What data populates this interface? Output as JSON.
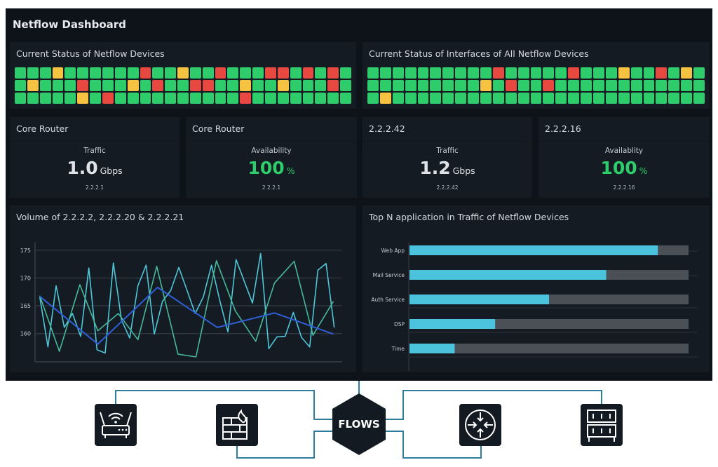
{
  "dashboard": {
    "title": "Netflow Dashboard"
  },
  "colors": {
    "up": "#2ecc6b",
    "warning": "#f5c242",
    "down": "#e7483f",
    "bar_fill": "#4cc3dc",
    "bar_track": "#4b4f56",
    "connector": "#2e7d99"
  },
  "status_panels": [
    {
      "title": "Current Status of Netflow Devices",
      "rows": [
        "GGGYGGGGGGRGGYGGRGGGRRGRGRG",
        "GYGGGRGGGYGRGGRRGGYGGYGGGRG",
        "GGGGGYGRGGGGGGGGGGRGGGGGGGG"
      ]
    },
    {
      "title": "Current Status of Interfaces of All Netflow Devices",
      "rows": [
        "GGGGGGGGGGRGGGGGRGGGYGGRGYG",
        "GGGGGGGGGYGRGGRGGGGGGGGGGGG",
        "GYGGGGGGGGGGGGGGGGGGGGGGGGG"
      ]
    }
  ],
  "kpis": [
    {
      "title": "Core Router",
      "label": "Traffic",
      "value": "1.0",
      "unit": "Gbps",
      "sub": "2.2.2.1",
      "style": "white"
    },
    {
      "title": "Core Router",
      "label": "Availability",
      "value": "100",
      "unit": "%",
      "sub": "2.2.2.1",
      "style": "green"
    },
    {
      "title": "2.2.2.42",
      "label": "Traffic",
      "value": "1.2",
      "unit": "Gbps",
      "sub": "2.2.2.42",
      "style": "white"
    },
    {
      "title": "2.2.2.16",
      "label": "Availablity",
      "value": "100",
      "unit": "%",
      "sub": "2.2.2.16",
      "style": "green"
    }
  ],
  "chart_data": [
    {
      "type": "line",
      "title": "Volume of 2.2.2.2, 2.2.2.20 & 2.2.2.21",
      "ylim": [
        155,
        176
      ],
      "yticks": [
        "160",
        "165",
        "170",
        "175"
      ],
      "grid": true,
      "series": [
        {
          "color": "#4fc6d9",
          "x": [
            0,
            1,
            2,
            3,
            4,
            5,
            6,
            7,
            8,
            9,
            10,
            11,
            12,
            13,
            14,
            15,
            16,
            17,
            18,
            19,
            20,
            21,
            22,
            23,
            24,
            25,
            26,
            27,
            28,
            29,
            30,
            31,
            32,
            33,
            34,
            35,
            36
          ],
          "values": [
            166.6,
            157.6,
            168.6,
            161.1,
            163.6,
            159.5,
            171.8,
            157.1,
            156.5,
            172.7,
            162.4,
            159.2,
            168.6,
            172.3,
            159.9,
            165.8,
            167.7,
            171.9,
            167.8,
            163.6,
            166.6,
            172.3,
            166,
            160.3,
            173.3,
            169.4,
            165.5,
            174.4,
            157.3,
            159.4,
            159.5,
            163.8,
            159.3,
            157.6,
            171.4,
            172.6,
            161.1
          ]
        },
        {
          "color": "#46b99a",
          "x": [
            0,
            2.4,
            4.9,
            7.1,
            9.6,
            12,
            14.3,
            16.9,
            19.1,
            21.6,
            23.9,
            26.4,
            28.7,
            31.1,
            33.4,
            35.9
          ],
          "values": [
            166.8,
            156.8,
            168.8,
            160.5,
            163.6,
            158.9,
            172.1,
            156.3,
            155.8,
            173.1,
            164.1,
            158.6,
            169.1,
            173.0,
            159.7,
            165.8
          ]
        },
        {
          "color": "#2f5fd6",
          "x": [
            0,
            7.1,
            14.4,
            21.7,
            28.7,
            35.9
          ],
          "values": [
            166.7,
            158.1,
            168.3,
            161.1,
            163.7,
            159.9
          ]
        }
      ]
    },
    {
      "type": "bar",
      "orientation": "horizontal",
      "title": "Top N application in Traffic of Netflow Devices",
      "categories": [
        "Web App",
        "Mail Service",
        "Auth Service",
        "DSP",
        "Time"
      ],
      "values": [
        89,
        70.5,
        50,
        30.7,
        16.2
      ],
      "xlim": [
        0,
        100
      ]
    }
  ],
  "diagram": {
    "center_label": "FLOWS",
    "nodes": [
      {
        "icon": "wifi-router-icon"
      },
      {
        "icon": "firewall-icon"
      },
      {
        "icon": "network-router-icon"
      },
      {
        "icon": "server-rack-icon"
      }
    ]
  }
}
